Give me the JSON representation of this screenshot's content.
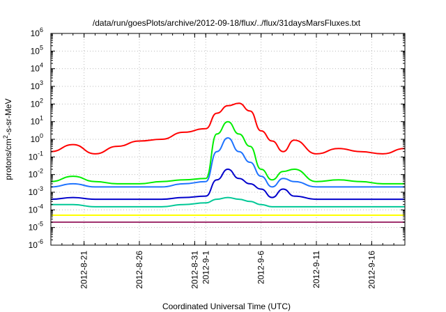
{
  "chart_data": {
    "type": "line",
    "title": "/data/run/goesPlots/archive/2012-09-18/flux/../flux/31daysMarsFluxes.txt",
    "xlabel": "Coordinated Universal Time (UTC)",
    "ylabel": "protons/cm²-s-sr-MeV",
    "ylabel_parts": {
      "pre": "protons/cm",
      "sup": "2",
      "post": "-s-sr-MeV"
    },
    "yscale": "log",
    "x_range": [
      "2012-08-18",
      "2012-09-19"
    ],
    "ylim": [
      1e-06,
      1000000.0
    ],
    "grid": true,
    "legend": "none",
    "x_ticks": [
      "2012-8-21",
      "2012-8-26",
      "2012-8-31",
      "2012-9-1",
      "2012-9-6",
      "2012-9-11",
      "2012-9-16"
    ],
    "y_ticks": [
      {
        "base": "10",
        "exp": "-6"
      },
      {
        "base": "10",
        "exp": "-5"
      },
      {
        "base": "10",
        "exp": "-4"
      },
      {
        "base": "10",
        "exp": "-3"
      },
      {
        "base": "10",
        "exp": "-2"
      },
      {
        "base": "10",
        "exp": "-1"
      },
      {
        "base": "10",
        "exp": "0"
      },
      {
        "base": "10",
        "exp": "1"
      },
      {
        "base": "10",
        "exp": "2"
      },
      {
        "base": "10",
        "exp": "3"
      },
      {
        "base": "10",
        "exp": "4"
      },
      {
        "base": "10",
        "exp": "5"
      },
      {
        "base": "10",
        "exp": "6"
      }
    ],
    "series": [
      {
        "color": "#ff0000",
        "x": [
          "2012-08-18",
          "2012-08-20",
          "2012-08-22",
          "2012-08-24",
          "2012-08-26",
          "2012-08-28",
          "2012-08-30",
          "2012-09-01",
          "2012-09-02",
          "2012-09-03",
          "2012-09-04",
          "2012-09-05",
          "2012-09-06",
          "2012-09-07",
          "2012-09-08",
          "2012-09-09",
          "2012-09-11",
          "2012-09-13",
          "2012-09-15",
          "2012-09-17",
          "2012-09-19"
        ],
        "values": [
          0.2,
          0.5,
          0.15,
          0.4,
          0.8,
          1.0,
          2.5,
          4,
          30,
          80,
          110,
          40,
          3,
          0.8,
          0.2,
          0.9,
          0.15,
          0.3,
          0.2,
          0.15,
          0.3
        ]
      },
      {
        "color": "#00ee00",
        "x": [
          "2012-08-18",
          "2012-08-20",
          "2012-08-22",
          "2012-08-24",
          "2012-08-26",
          "2012-08-28",
          "2012-08-30",
          "2012-09-01",
          "2012-09-02",
          "2012-09-03",
          "2012-09-04",
          "2012-09-05",
          "2012-09-06",
          "2012-09-07",
          "2012-09-08",
          "2012-09-09",
          "2012-09-11",
          "2012-09-13",
          "2012-09-15",
          "2012-09-17",
          "2012-09-19"
        ],
        "values": [
          0.004,
          0.008,
          0.004,
          0.003,
          0.003,
          0.004,
          0.005,
          0.006,
          2,
          10,
          2,
          0.4,
          0.02,
          0.005,
          0.015,
          0.02,
          0.004,
          0.005,
          0.004,
          0.003,
          0.003
        ]
      },
      {
        "color": "#1e73ff",
        "x": [
          "2012-08-18",
          "2012-08-20",
          "2012-08-22",
          "2012-08-24",
          "2012-08-26",
          "2012-08-28",
          "2012-08-30",
          "2012-09-01",
          "2012-09-02",
          "2012-09-03",
          "2012-09-04",
          "2012-09-05",
          "2012-09-06",
          "2012-09-07",
          "2012-09-08",
          "2012-09-09",
          "2012-09-11",
          "2012-09-13",
          "2012-09-15",
          "2012-09-17",
          "2012-09-19"
        ],
        "values": [
          0.002,
          0.003,
          0.002,
          0.002,
          0.002,
          0.002,
          0.003,
          0.004,
          0.2,
          1.2,
          0.2,
          0.05,
          0.008,
          0.002,
          0.006,
          0.004,
          0.002,
          0.002,
          0.002,
          0.002,
          0.002
        ]
      },
      {
        "color": "#0000cc",
        "x": [
          "2012-08-18",
          "2012-08-20",
          "2012-08-22",
          "2012-08-24",
          "2012-08-26",
          "2012-08-28",
          "2012-08-30",
          "2012-09-01",
          "2012-09-02",
          "2012-09-03",
          "2012-09-04",
          "2012-09-05",
          "2012-09-06",
          "2012-09-07",
          "2012-09-08",
          "2012-09-09",
          "2012-09-11",
          "2012-09-13",
          "2012-09-15",
          "2012-09-17",
          "2012-09-19"
        ],
        "values": [
          0.0004,
          0.0005,
          0.0004,
          0.0004,
          0.0004,
          0.0004,
          0.0005,
          0.0006,
          0.005,
          0.02,
          0.006,
          0.003,
          0.0015,
          0.0005,
          0.0015,
          0.0006,
          0.0004,
          0.0004,
          0.0004,
          0.0004,
          0.0004
        ]
      },
      {
        "color": "#00c896",
        "x": [
          "2012-08-18",
          "2012-08-20",
          "2012-08-22",
          "2012-08-24",
          "2012-08-26",
          "2012-08-28",
          "2012-08-30",
          "2012-09-01",
          "2012-09-02",
          "2012-09-03",
          "2012-09-04",
          "2012-09-05",
          "2012-09-06",
          "2012-09-07",
          "2012-09-08",
          "2012-09-09",
          "2012-09-11",
          "2012-09-13",
          "2012-09-15",
          "2012-09-17",
          "2012-09-19"
        ],
        "values": [
          0.0002,
          0.0002,
          0.00015,
          0.00015,
          0.00015,
          0.00015,
          0.0002,
          0.00025,
          0.0004,
          0.0005,
          0.0004,
          0.0003,
          0.0002,
          0.00015,
          0.00015,
          0.00015,
          0.00015,
          0.00015,
          0.00015,
          0.00015,
          0.00015
        ]
      },
      {
        "color": "#ffff00",
        "x": [
          "2012-08-18",
          "2012-08-20",
          "2012-08-22",
          "2012-08-24",
          "2012-08-26",
          "2012-08-28",
          "2012-08-30",
          "2012-09-01",
          "2012-09-02",
          "2012-09-03",
          "2012-09-04",
          "2012-09-05",
          "2012-09-06",
          "2012-09-07",
          "2012-09-08",
          "2012-09-09",
          "2012-09-11",
          "2012-09-13",
          "2012-09-15",
          "2012-09-17",
          "2012-09-19"
        ],
        "values": [
          5e-05,
          5e-05,
          5e-05,
          5e-05,
          5e-05,
          5e-05,
          5e-05,
          5e-05,
          5e-05,
          5e-05,
          5e-05,
          5e-05,
          5e-05,
          5e-05,
          5e-05,
          5e-05,
          5e-05,
          5e-05,
          5e-05,
          5e-05,
          5e-05
        ]
      },
      {
        "color": "#a0306e",
        "x": [
          "2012-08-18",
          "2012-08-20",
          "2012-08-22",
          "2012-08-24",
          "2012-08-26",
          "2012-08-28",
          "2012-08-30",
          "2012-09-01",
          "2012-09-02",
          "2012-09-03",
          "2012-09-04",
          "2012-09-05",
          "2012-09-06",
          "2012-09-07",
          "2012-09-08",
          "2012-09-09",
          "2012-09-11",
          "2012-09-13",
          "2012-09-15",
          "2012-09-17",
          "2012-09-19"
        ],
        "values": [
          2e-05,
          2e-05,
          2e-05,
          2e-05,
          2e-05,
          2e-05,
          2e-05,
          2e-05,
          2e-05,
          2e-05,
          2e-05,
          2e-05,
          2e-05,
          2e-05,
          2e-05,
          2e-05,
          2e-05,
          2e-05,
          2e-05,
          2e-05,
          2e-05
        ]
      }
    ]
  }
}
